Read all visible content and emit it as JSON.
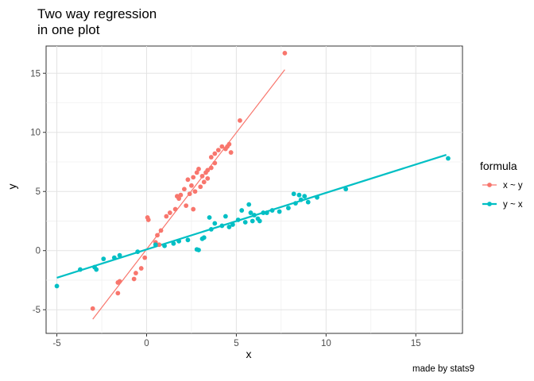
{
  "chart_data": {
    "type": "scatter",
    "title": [
      "Two way regression",
      "in one plot"
    ],
    "xlabel": "x",
    "ylabel": "y",
    "xlim": [
      -5.6,
      17.6
    ],
    "ylim": [
      -7.0,
      17.3
    ],
    "xticks": [
      -5,
      0,
      5,
      10,
      15
    ],
    "yticks": [
      -5,
      0,
      5,
      10,
      15
    ],
    "grid": true,
    "legend": {
      "title": "formula",
      "position": "right"
    },
    "caption": "made by stats9",
    "series": [
      {
        "name": "x ~ y",
        "color": "#F8766D",
        "line_width": 1.2,
        "fit": {
          "x0": -3.0,
          "y0": -5.8,
          "x1": 7.7,
          "y1": 15.3
        },
        "points": [
          [
            7.7,
            16.7
          ],
          [
            5.2,
            11.0
          ],
          [
            4.6,
            9.0
          ],
          [
            4.5,
            8.8
          ],
          [
            4.4,
            8.6
          ],
          [
            4.7,
            8.3
          ],
          [
            4.2,
            8.8
          ],
          [
            4.0,
            8.5
          ],
          [
            3.8,
            8.2
          ],
          [
            3.6,
            7.9
          ],
          [
            3.8,
            7.4
          ],
          [
            3.6,
            7.0
          ],
          [
            3.4,
            6.8
          ],
          [
            3.3,
            6.6
          ],
          [
            3.1,
            6.3
          ],
          [
            3.4,
            6.1
          ],
          [
            2.9,
            6.9
          ],
          [
            2.8,
            6.6
          ],
          [
            2.6,
            6.2
          ],
          [
            2.5,
            5.5
          ],
          [
            3.2,
            5.8
          ],
          [
            3.0,
            5.4
          ],
          [
            2.7,
            5.0
          ],
          [
            2.3,
            6.0
          ],
          [
            2.1,
            5.2
          ],
          [
            2.4,
            4.8
          ],
          [
            1.9,
            4.7
          ],
          [
            1.8,
            4.4
          ],
          [
            1.7,
            4.6
          ],
          [
            1.6,
            3.5
          ],
          [
            1.3,
            3.2
          ],
          [
            1.1,
            2.9
          ],
          [
            2.2,
            3.8
          ],
          [
            2.6,
            3.5
          ],
          [
            0.05,
            2.8
          ],
          [
            0.1,
            2.6
          ],
          [
            0.8,
            1.7
          ],
          [
            0.6,
            1.3
          ],
          [
            0.5,
            0.7
          ],
          [
            0.7,
            0.5
          ],
          [
            -0.1,
            -0.6
          ],
          [
            -0.3,
            -1.5
          ],
          [
            -0.6,
            -1.9
          ],
          [
            -0.7,
            -2.4
          ],
          [
            -1.5,
            -2.6
          ],
          [
            -1.6,
            -2.7
          ],
          [
            -1.6,
            -3.6
          ],
          [
            -3.0,
            -4.9
          ]
        ]
      },
      {
        "name": "y ~ x",
        "color": "#00BFC4",
        "line_width": 2.2,
        "fit": {
          "x0": -5.0,
          "y0": -2.3,
          "x1": 16.7,
          "y1": 8.1
        },
        "points": [
          [
            -5.0,
            -3.0
          ],
          [
            -3.7,
            -1.6
          ],
          [
            -2.9,
            -1.4
          ],
          [
            -2.8,
            -1.6
          ],
          [
            -2.4,
            -0.7
          ],
          [
            -1.8,
            -0.6
          ],
          [
            -1.5,
            -0.4
          ],
          [
            -0.5,
            -0.1
          ],
          [
            0.5,
            0.5
          ],
          [
            1.0,
            0.4
          ],
          [
            1.5,
            0.6
          ],
          [
            1.8,
            0.8
          ],
          [
            2.3,
            0.9
          ],
          [
            2.8,
            0.1
          ],
          [
            2.9,
            0.05
          ],
          [
            3.1,
            1.0
          ],
          [
            3.2,
            1.1
          ],
          [
            3.6,
            1.8
          ],
          [
            3.8,
            2.3
          ],
          [
            4.2,
            2.1
          ],
          [
            4.6,
            2.0
          ],
          [
            4.8,
            2.2
          ],
          [
            5.1,
            2.6
          ],
          [
            5.5,
            2.4
          ],
          [
            5.9,
            2.5
          ],
          [
            6.2,
            2.7
          ],
          [
            6.5,
            3.2
          ],
          [
            7.0,
            3.4
          ],
          [
            7.4,
            3.3
          ],
          [
            7.9,
            3.6
          ],
          [
            8.3,
            4.0
          ],
          [
            8.6,
            4.3
          ],
          [
            9.0,
            4.1
          ],
          [
            9.5,
            4.5
          ],
          [
            8.2,
            4.8
          ],
          [
            8.5,
            4.7
          ],
          [
            8.8,
            4.6
          ],
          [
            6.3,
            2.5
          ],
          [
            6.7,
            3.2
          ],
          [
            6.0,
            3.0
          ],
          [
            5.7,
            3.9
          ],
          [
            5.8,
            3.2
          ],
          [
            5.3,
            3.4
          ],
          [
            4.4,
            2.9
          ],
          [
            3.5,
            2.8
          ],
          [
            11.1,
            5.2
          ],
          [
            16.8,
            7.8
          ]
        ]
      }
    ]
  }
}
